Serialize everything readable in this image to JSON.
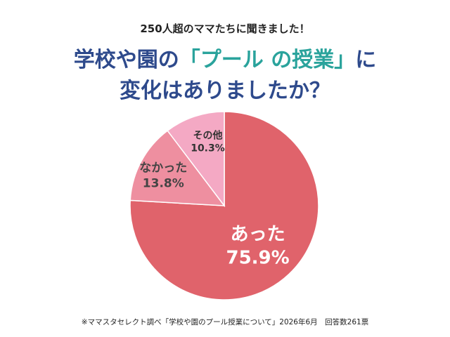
{
  "header": {
    "subtitle": "250人超のママたちに聞きました！",
    "title_line1_pre": "学校や園の",
    "title_line1_highlight": "「プール の授業」",
    "title_line1_post": "に",
    "title_line2": "変化はありましたか？"
  },
  "chart_data": {
    "type": "pie",
    "categories": [
      "あった",
      "なかった",
      "その他"
    ],
    "values": [
      75.9,
      13.8,
      10.3
    ],
    "value_labels": [
      "75.9%",
      "13.8%",
      "10.3%"
    ],
    "colors": [
      "#e0636b",
      "#ee8fa0",
      "#f4a9c4"
    ],
    "start": "12 o'clock",
    "direction": "clockwise"
  },
  "footnote": "※ママスタセレクト調べ「学校や園のプール授業について」2026年6月　回答数261票"
}
